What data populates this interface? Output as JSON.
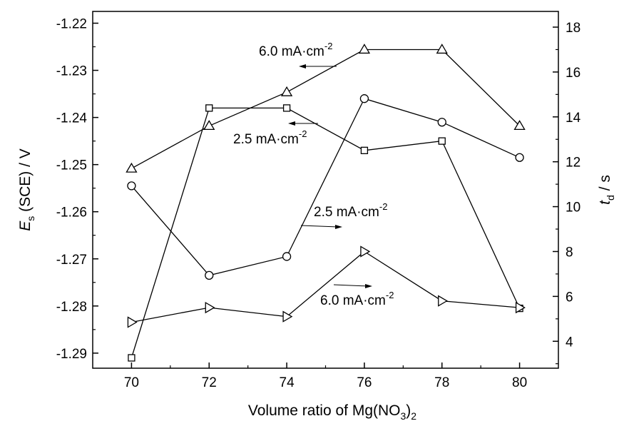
{
  "chart_data": {
    "type": "line",
    "xlabel": {
      "pre": "Volume ratio of Mg(NO",
      "sub1": "3",
      "mid": ")",
      "sub2": "2"
    },
    "ylabel_left": {
      "main": "E",
      "sub": "s",
      "rest": " (SCE) / V"
    },
    "ylabel_right": {
      "main": "t",
      "sub": "d",
      "rest": " / s"
    },
    "x_ticks": [
      "70",
      "72",
      "74",
      "76",
      "78",
      "80"
    ],
    "y_left_ticks": [
      "-1.22",
      "-1.23",
      "-1.24",
      "-1.25",
      "-1.26",
      "-1.27",
      "-1.28",
      "-1.29"
    ],
    "y_right_ticks": [
      "4",
      "6",
      "8",
      "10",
      "12",
      "14",
      "16",
      "18"
    ],
    "x_range": [
      69,
      81
    ],
    "y_left_range": [
      -1.2932,
      -1.2175
    ],
    "y_right_range": [
      2.8,
      18.7
    ],
    "grid": false,
    "series": [
      {
        "marker": "square",
        "axis": "left",
        "x": [
          70,
          72,
          74,
          76,
          78,
          80
        ],
        "y": [
          -1.291,
          -1.238,
          -1.238,
          -1.247,
          -1.245,
          -1.2805
        ]
      },
      {
        "marker": "circle",
        "axis": "left",
        "x": [
          70,
          72,
          74,
          76,
          78,
          80
        ],
        "y": [
          -1.2545,
          -1.2735,
          -1.2695,
          -1.236,
          -1.241,
          -1.2485
        ]
      },
      {
        "marker": "triangle-up",
        "axis": "right",
        "x": [
          70,
          72,
          74,
          76,
          78,
          80
        ],
        "y": [
          11.7,
          13.6,
          15.1,
          17.0,
          17.0,
          13.6
        ]
      },
      {
        "marker": "triangle-right",
        "axis": "right",
        "x": [
          70,
          72,
          74,
          76,
          78,
          80
        ],
        "y": [
          4.85,
          5.5,
          5.1,
          8.0,
          5.8,
          5.5
        ]
      }
    ],
    "annotations": [
      {
        "id": "ann-6-0-left",
        "value": "6.0 mA·cm",
        "sup": "-2",
        "arrow": "left",
        "points_to": "triangle-up"
      },
      {
        "id": "ann-2-5-left",
        "value": "2.5 mA·cm",
        "sup": "-2",
        "arrow": "left",
        "points_to": "square"
      },
      {
        "id": "ann-2-5-right",
        "value": "2.5 mA·cm",
        "sup": "-2",
        "arrow": "right",
        "points_to": "circle"
      },
      {
        "id": "ann-6-0-right",
        "value": "6.0 mA·cm",
        "sup": "-2",
        "arrow": "right",
        "points_to": "triangle-right"
      }
    ]
  }
}
